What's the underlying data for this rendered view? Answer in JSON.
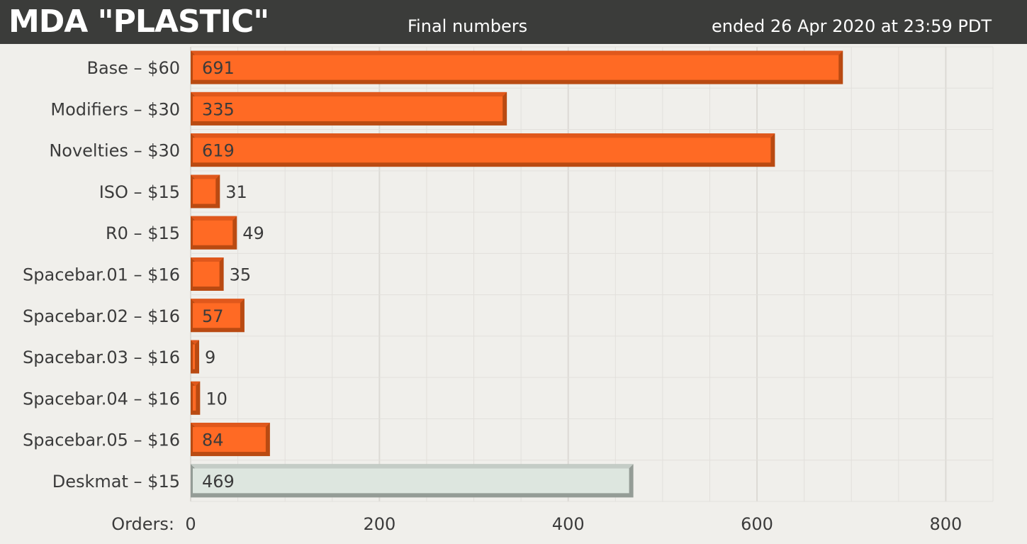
{
  "header": {
    "title": "MDA \"PLASTIC\"",
    "subtitle": "Final numbers",
    "end_date": "ended 26 Apr 2020 at 23:59 PDT"
  },
  "colors": {
    "header_bg": "#3b3c3a",
    "background": "#f0efeb",
    "bar_primary": "#ff6a24",
    "bar_primary_edge": "#b94a12",
    "bar_secondary": "#dde6df",
    "bar_secondary_edge": "#949c96",
    "grid": "#e2e0dc"
  },
  "chart_data": {
    "type": "bar",
    "orientation": "horizontal",
    "title": "",
    "xlabel": "Orders:",
    "ylabel": "",
    "xlim": [
      0,
      850
    ],
    "xticks": [
      0,
      200,
      400,
      600,
      800
    ],
    "grid": true,
    "categories": [
      "Base – $60",
      "Modifiers – $30",
      "Novelties – $30",
      "ISO – $15",
      "R0 – $15",
      "Spacebar.01 – $16",
      "Spacebar.02 – $16",
      "Spacebar.03 – $16",
      "Spacebar.04 – $16",
      "Spacebar.05 – $16",
      "Deskmat – $15"
    ],
    "values": [
      691,
      335,
      619,
      31,
      49,
      35,
      57,
      9,
      10,
      84,
      469
    ],
    "bar_style": [
      "primary",
      "primary",
      "primary",
      "primary",
      "primary",
      "primary",
      "primary",
      "primary",
      "primary",
      "primary",
      "secondary"
    ]
  }
}
